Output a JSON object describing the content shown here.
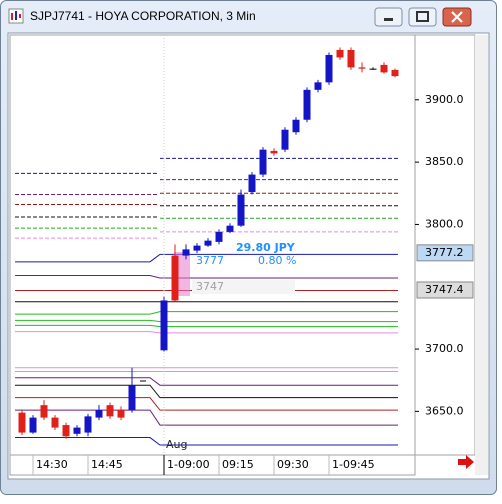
{
  "window": {
    "title": "SJPJ7741 - HOYA CORPORATION, 3 Min"
  },
  "chart_data": {
    "type": "candlestick",
    "categories": [
      null,
      "14:30",
      null,
      null,
      null,
      null,
      "14:45",
      null,
      null,
      null,
      null,
      "1-09:00",
      null,
      null,
      null,
      null,
      "09:15",
      null,
      null,
      null,
      null,
      "09:30",
      null,
      null,
      null,
      null,
      "1-09:45",
      null,
      null,
      null,
      null,
      null,
      null
    ],
    "open": [
      3649,
      3633,
      3655,
      3645,
      3639,
      3632,
      3633,
      3645,
      3655,
      3651,
      3651,
      3699,
      3775,
      3775,
      3779,
      3783,
      3786,
      3794,
      3799,
      3826,
      3840,
      3859,
      3860,
      3874,
      3884,
      3908,
      3914,
      3940,
      3940,
      3926,
      3925,
      3928,
      3924
    ],
    "high": [
      3651,
      3647,
      3659,
      3647,
      3641,
      3639,
      3648,
      3655,
      3657,
      3654,
      3685,
      3742,
      3784,
      3784,
      3785,
      3789,
      3796,
      3801,
      3828,
      3842,
      3862,
      3861,
      3878,
      3886,
      3910,
      3916,
      3938,
      3942,
      3942,
      3930,
      3926,
      3930,
      3925
    ],
    "low": [
      3631,
      3632,
      3643,
      3635,
      3628,
      3630,
      3630,
      3643,
      3644,
      3643,
      3649,
      3698,
      3738,
      3772,
      3777,
      3782,
      3784,
      3793,
      3798,
      3824,
      3838,
      3855,
      3858,
      3872,
      3882,
      3906,
      3912,
      3932,
      3924,
      3922,
      3924,
      3921,
      3918
    ],
    "close": [
      3633,
      3645,
      3645,
      3637,
      3630,
      3637,
      3646,
      3651,
      3646,
      3645,
      3671,
      3739,
      3739,
      3780,
      3783,
      3787,
      3794,
      3799,
      3824,
      3840,
      3860,
      3857,
      3876,
      3884,
      3908,
      3914,
      3936,
      3934,
      3926,
      3925,
      3925,
      3922,
      3919
    ],
    "up_color": "#1515c8",
    "down_color": "#e0201b",
    "ylim": [
      3615,
      3952
    ],
    "yticks": [
      {
        "value": 3650,
        "label": "3650.0"
      },
      {
        "value": 3700,
        "label": "3700.0"
      },
      {
        "value": 3800,
        "label": "3800.0"
      },
      {
        "value": 3850,
        "label": "3850.0"
      },
      {
        "value": 3900,
        "label": "3900.0"
      }
    ],
    "levels": [
      {
        "values": [
          3841,
          3853
        ],
        "color": "#1a1a8c",
        "dashed": true
      },
      {
        "values": [
          3824,
          3836
        ],
        "color": "#6a1f7a",
        "dashed": true
      },
      {
        "values": [
          3816,
          3825
        ],
        "color": "#8b1a1a",
        "dashed": true
      },
      {
        "values": [
          3806,
          3815
        ],
        "color": "#111111",
        "dashed": true
      },
      {
        "values": [
          3797,
          3805
        ],
        "color": "#22aa22",
        "dashed": true
      },
      {
        "values": [
          3789,
          3794
        ],
        "color": "#e58ae0",
        "dashed": true
      },
      {
        "values": [
          3770,
          3776
        ],
        "color": "#1a1ab0",
        "dashed": false
      },
      {
        "values": [
          3759,
          3757
        ],
        "color": "#6a1f7a",
        "dashed": false
      },
      {
        "values": [
          3747,
          3747
        ],
        "color": "#b02020",
        "dashed": false
      },
      {
        "values": [
          3738,
          3738
        ],
        "color": "#111111",
        "dashed": false
      },
      {
        "values": [
          3728,
          3730
        ],
        "color": "#22bb22",
        "dashed": false
      },
      {
        "values": [
          3723,
          3722
        ],
        "color": "#22bb22",
        "dashed": false
      },
      {
        "values": [
          3719,
          3718
        ],
        "color": "#22bb22",
        "dashed": false
      },
      {
        "values": [
          3714,
          3713
        ],
        "color": "#e58ae0",
        "dashed": false
      },
      {
        "values": [
          3685,
          3685
        ],
        "color": "#e58ae0",
        "dashed": false
      },
      {
        "values": [
          3682,
          3682
        ],
        "color": "#e58ae0",
        "dashed": false
      },
      {
        "values": [
          3677,
          3671
        ],
        "color": "#6a1f7a",
        "dashed": false
      },
      {
        "values": [
          3671,
          3661
        ],
        "color": "#111111",
        "dashed": false
      },
      {
        "values": [
          3661,
          3651
        ],
        "color": "#b02020",
        "dashed": false
      },
      {
        "values": [
          3651,
          3639
        ],
        "color": "#6a1f7a",
        "dashed": false
      },
      {
        "values": [
          3629,
          3623
        ],
        "color": "#1a1ab0",
        "dashed": false
      }
    ],
    "price_markers": [
      {
        "value": 3777.2,
        "color": "#bcd8f5"
      },
      {
        "value": 3747.4,
        "color": "#dcdcdc"
      }
    ],
    "annotations": [
      "29.80 JPY",
      "0.80 %",
      "3777",
      "3747",
      "Aug"
    ]
  }
}
